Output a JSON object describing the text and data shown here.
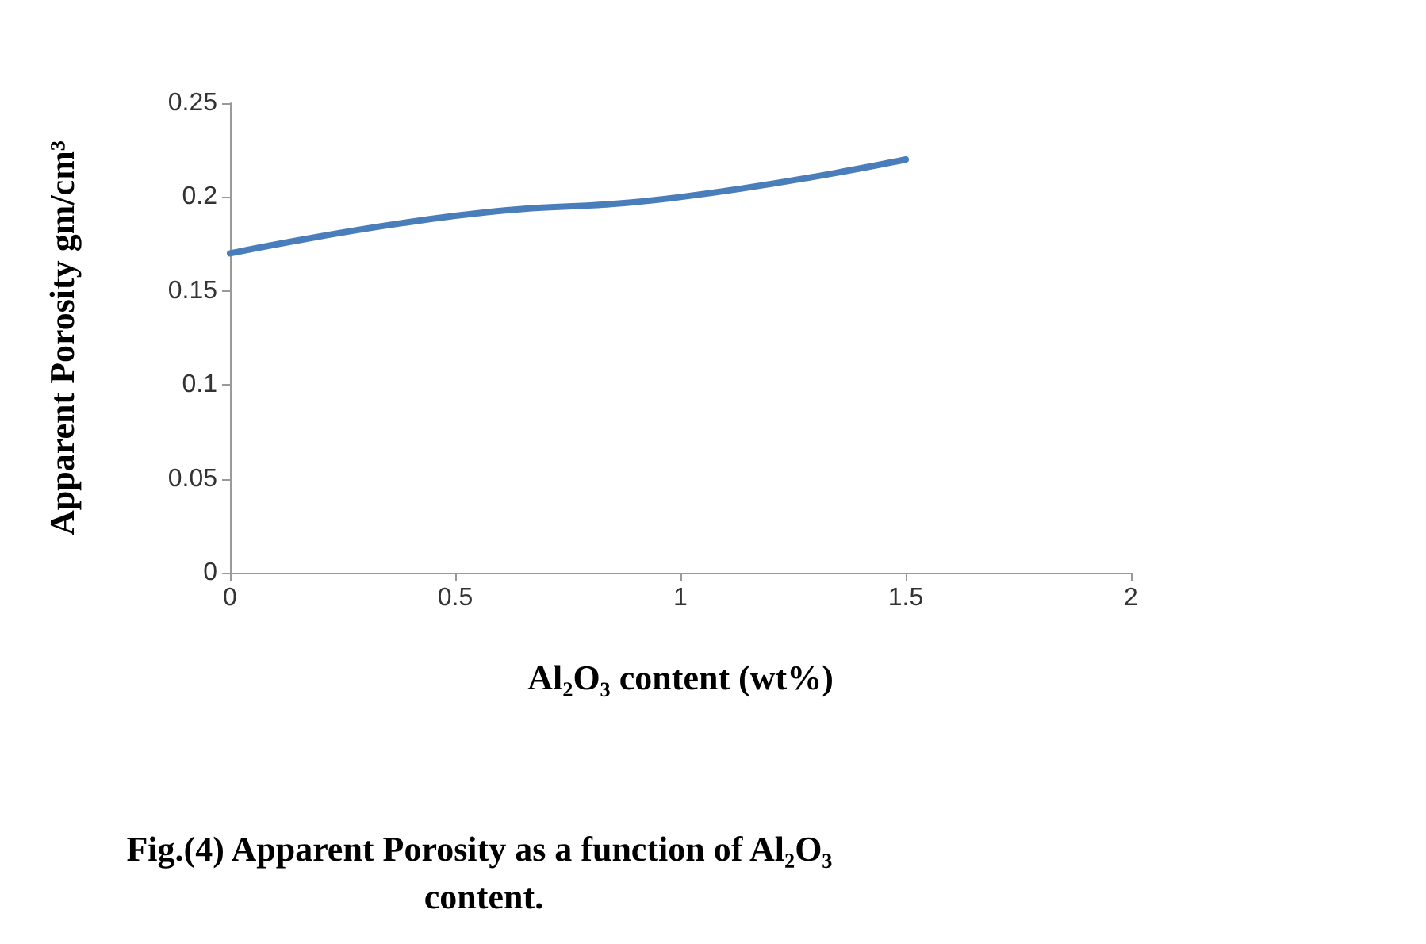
{
  "chart_data": {
    "type": "line",
    "title": "Fig.(4) Apparent Porosity as a function of Al₂O₃ content.",
    "xlabel": "Al₂O₃ content (wt%)",
    "ylabel": "Apparent Porosity gm/cm³",
    "x": [
      0,
      0.5,
      1,
      1.5
    ],
    "series": [
      {
        "color": "#4a7ebb",
        "values": [
          0.17,
          0.19,
          0.2,
          0.22
        ]
      }
    ],
    "xlim": [
      0,
      2
    ],
    "xticks": [
      0,
      0.5,
      1,
      1.5,
      2
    ],
    "ylim": [
      0,
      0.25
    ],
    "yticks": [
      0,
      0.05,
      0.1,
      0.15,
      0.2,
      0.25
    ],
    "marker": "none",
    "line_style": "solid"
  }
}
